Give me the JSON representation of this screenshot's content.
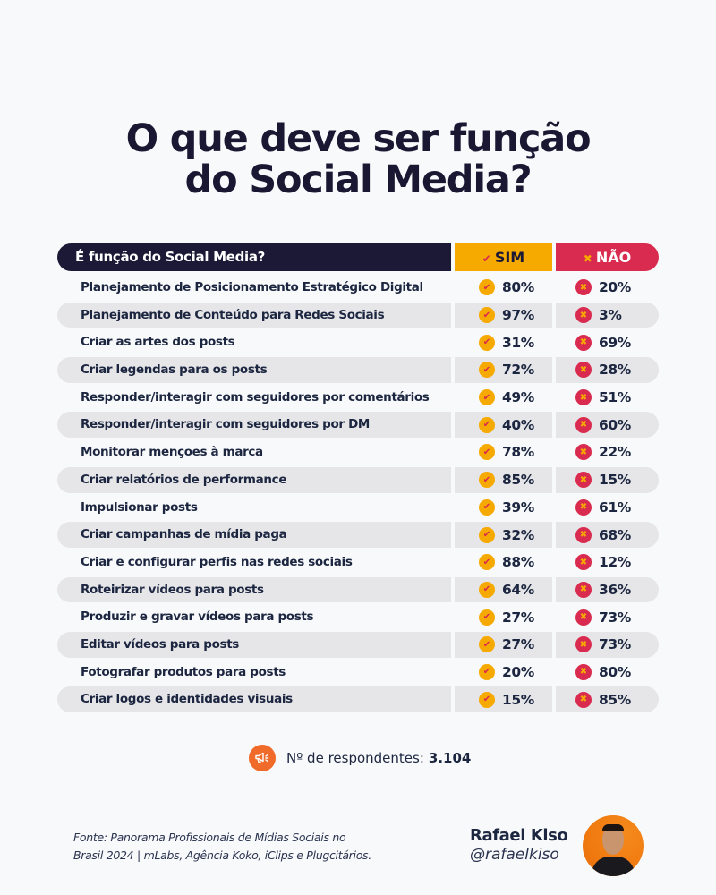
{
  "title": {
    "line1": "O que deve ser função",
    "line2": "do Social Media?"
  },
  "table": {
    "header": {
      "question": "É função do Social Media?",
      "yes_label": "SIM",
      "no_label": "NÃO",
      "yes_mark": "✔",
      "no_mark": "✖"
    },
    "rows": [
      {
        "label": "Planejamento de Posicionamento Estratégico Digital",
        "sim": "80%",
        "nao": "20%"
      },
      {
        "label": "Planejamento de Conteúdo para Redes Sociais",
        "sim": "97%",
        "nao": "3%"
      },
      {
        "label": "Criar as artes dos posts",
        "sim": "31%",
        "nao": "69%"
      },
      {
        "label": "Criar legendas para os posts",
        "sim": "72%",
        "nao": "28%"
      },
      {
        "label": "Responder/interagir com seguidores por comentários",
        "sim": "49%",
        "nao": "51%"
      },
      {
        "label": "Responder/interagir com seguidores por DM",
        "sim": "40%",
        "nao": "60%"
      },
      {
        "label": "Monitorar menções à marca",
        "sim": "78%",
        "nao": "22%"
      },
      {
        "label": "Criar relatórios de performance",
        "sim": "85%",
        "nao": "15%"
      },
      {
        "label": "Impulsionar posts",
        "sim": "39%",
        "nao": "61%"
      },
      {
        "label": "Criar campanhas de mídia paga",
        "sim": "32%",
        "nao": "68%"
      },
      {
        "label": "Criar e configurar perfis nas redes sociais",
        "sim": "88%",
        "nao": "12%"
      },
      {
        "label": "Roteirizar vídeos para posts",
        "sim": "64%",
        "nao": "36%"
      },
      {
        "label": "Produzir e gravar vídeos para posts",
        "sim": "27%",
        "nao": "73%"
      },
      {
        "label": "Editar vídeos para posts",
        "sim": "27%",
        "nao": "73%"
      },
      {
        "label": "Fotografar produtos para posts",
        "sim": "20%",
        "nao": "80%"
      },
      {
        "label": "Criar logos e identidades visuais",
        "sim": "15%",
        "nao": "85%"
      }
    ]
  },
  "respondents": {
    "label": "Nº de respondentes:",
    "value": "3.104",
    "icon": "megaphone-icon"
  },
  "source": {
    "line1": "Fonte: Panorama Profissionais de Mídias Sociais no",
    "line2": "Brasil 2024 | mLabs, Agência Koko, iClips e Plugcitários."
  },
  "author": {
    "name": "Rafael Kiso",
    "handle": "@rafaelkiso"
  },
  "colors": {
    "dark": "#1c1936",
    "yes": "#f6aa00",
    "no": "#d92b4f",
    "row_alt": "#e6e6e8",
    "accent_icon": "#f06a2a"
  },
  "chart_data": {
    "type": "table",
    "title": "O que deve ser função do Social Media?",
    "columns": [
      "É função do Social Media?",
      "SIM",
      "NÃO"
    ],
    "categories": [
      "Planejamento de Posicionamento Estratégico Digital",
      "Planejamento de Conteúdo para Redes Sociais",
      "Criar as artes dos posts",
      "Criar legendas para os posts",
      "Responder/interagir com seguidores por comentários",
      "Responder/interagir com seguidores por DM",
      "Monitorar menções à marca",
      "Criar relatórios de performance",
      "Impulsionar posts",
      "Criar campanhas de mídia paga",
      "Criar e configurar perfis nas redes sociais",
      "Roteirizar vídeos para posts",
      "Produzir e gravar vídeos para posts",
      "Editar vídeos para posts",
      "Fotografar produtos para posts",
      "Criar logos e identidades visuais"
    ],
    "series": [
      {
        "name": "SIM",
        "values": [
          80,
          97,
          31,
          72,
          49,
          40,
          78,
          85,
          39,
          32,
          88,
          64,
          27,
          27,
          20,
          15
        ]
      },
      {
        "name": "NÃO",
        "values": [
          20,
          3,
          69,
          28,
          51,
          60,
          22,
          15,
          61,
          68,
          12,
          36,
          73,
          73,
          80,
          85
        ]
      }
    ],
    "unit": "%",
    "respondents": 3104,
    "source": "Panorama Profissionais de Mídias Sociais no Brasil 2024 | mLabs, Agência Koko, iClips e Plugcitários."
  }
}
